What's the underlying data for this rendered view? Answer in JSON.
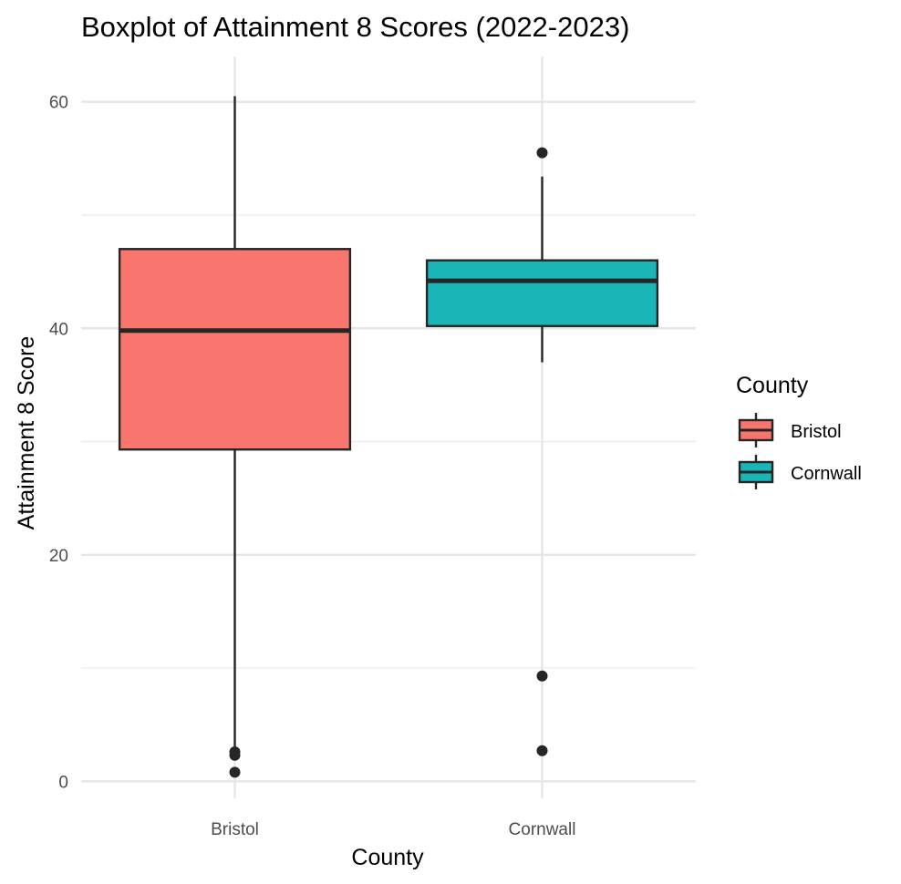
{
  "chart_data": {
    "type": "boxplot",
    "title": "Boxplot of Attainment 8 Scores (2022-2023)",
    "xlabel": "County",
    "ylabel": "Attainment 8 Score",
    "ylim": [
      -1.5,
      64
    ],
    "yticks": [
      0,
      20,
      40,
      60
    ],
    "grid": true,
    "legend": {
      "title": "County",
      "position": "right"
    },
    "categories": [
      "Bristol",
      "Cornwall"
    ],
    "series": [
      {
        "name": "Bristol",
        "color": "#f8766d",
        "whisker_low": 3.0,
        "q1": 29.3,
        "median": 39.8,
        "q3": 47.0,
        "whisker_high": 60.5,
        "outliers": [
          2.6,
          2.3,
          0.8
        ]
      },
      {
        "name": "Cornwall",
        "color": "#19b5b7",
        "whisker_low": 37.0,
        "q1": 40.2,
        "median": 44.2,
        "q3": 46.0,
        "whisker_high": 53.4,
        "outliers": [
          55.5,
          9.3,
          2.7
        ]
      }
    ]
  }
}
